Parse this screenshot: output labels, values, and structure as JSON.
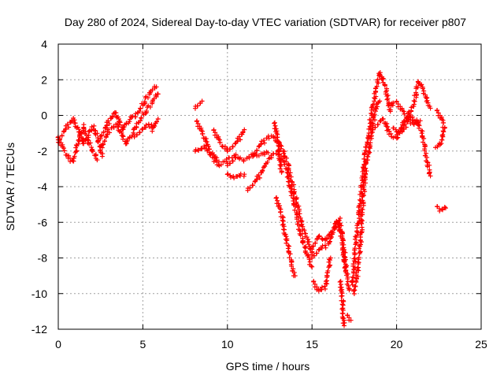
{
  "chart_data": {
    "type": "scatter",
    "title": "Day 280 of 2024, Sidereal Day-to-day VTEC variation (SDTVAR) for receiver p807",
    "xlabel": "GPS time / hours",
    "ylabel": "SDTVAR / TECUs",
    "xlim": [
      0,
      25
    ],
    "ylim": [
      -12,
      4
    ],
    "xticks": [
      0,
      5,
      10,
      15,
      20,
      25
    ],
    "yticks": [
      -12,
      -10,
      -8,
      -6,
      -4,
      -2,
      0,
      2,
      4
    ],
    "grid": true,
    "marker": "plus",
    "color": "#ff0000",
    "series": [
      {
        "name": "track",
        "points": [
          [
            0,
            -1.5
          ],
          [
            0.3,
            -1
          ],
          [
            0.6,
            -0.5
          ],
          [
            0.9,
            -0.2
          ],
          [
            1.2,
            -0.8
          ],
          [
            1.5,
            -1.6
          ],
          [
            1.8,
            -1
          ],
          [
            2.1,
            -0.6
          ],
          [
            2.4,
            -1.5
          ],
          [
            2.6,
            -2.3
          ]
        ]
      },
      {
        "name": "track",
        "points": [
          [
            0,
            -1.2
          ],
          [
            0.3,
            -1.9
          ],
          [
            0.6,
            -2.4
          ],
          [
            0.9,
            -2.6
          ],
          [
            1.2,
            -1.4
          ],
          [
            1.5,
            -0.6
          ],
          [
            1.8,
            -1.5
          ],
          [
            2.1,
            -2.1
          ],
          [
            2.3,
            -2.5
          ]
        ]
      },
      {
        "name": "track",
        "points": [
          [
            2.5,
            -1.3
          ],
          [
            3.0,
            -0.3
          ],
          [
            3.4,
            0.2
          ],
          [
            3.8,
            -0.8
          ],
          [
            4.2,
            -0.2
          ],
          [
            4.6,
            0
          ],
          [
            5.0,
            0.6
          ],
          [
            5.4,
            1.2
          ],
          [
            5.8,
            1.6
          ]
        ]
      },
      {
        "name": "track",
        "points": [
          [
            2.6,
            -1.8
          ],
          [
            3.0,
            -0.8
          ],
          [
            3.5,
            -0.5
          ],
          [
            4.0,
            -1.6
          ],
          [
            4.5,
            -0.8
          ],
          [
            5.0,
            0
          ],
          [
            5.5,
            0.6
          ],
          [
            5.9,
            1.2
          ]
        ]
      },
      {
        "name": "track",
        "points": [
          [
            4.5,
            -1.2
          ],
          [
            5.0,
            -0.8
          ],
          [
            5.4,
            -0.5
          ],
          [
            5.6,
            -0.8
          ],
          [
            5.9,
            -0.2
          ]
        ]
      },
      {
        "name": "track",
        "points": [
          [
            8.1,
            0.4
          ],
          [
            8.5,
            0.8
          ]
        ]
      },
      {
        "name": "track",
        "points": [
          [
            8.1,
            -2.0
          ],
          [
            8.6,
            -1.8
          ],
          [
            9.0,
            -2.2
          ],
          [
            9.5,
            -2.8
          ],
          [
            10.0,
            -2.5
          ],
          [
            10.5,
            -2.2
          ]
        ]
      },
      {
        "name": "track",
        "points": [
          [
            8.2,
            -0.3
          ],
          [
            8.6,
            -1.2
          ],
          [
            9.0,
            -2.0
          ],
          [
            9.5,
            -2.6
          ]
        ]
      },
      {
        "name": "track",
        "points": [
          [
            9.2,
            -0.8
          ],
          [
            9.6,
            -1.6
          ],
          [
            10.0,
            -2.0
          ]
        ]
      },
      {
        "name": "track",
        "points": [
          [
            10.0,
            -2.8
          ],
          [
            10.5,
            -2.4
          ],
          [
            11.0,
            -2.5
          ],
          [
            11.5,
            -2.2
          ],
          [
            12.0,
            -2.2
          ],
          [
            12.4,
            -2.1
          ]
        ]
      },
      {
        "name": "track",
        "points": [
          [
            10.0,
            -2.0
          ],
          [
            10.5,
            -1.6
          ],
          [
            11.0,
            -0.8
          ]
        ]
      },
      {
        "name": "track",
        "points": [
          [
            10.0,
            -3.3
          ],
          [
            10.5,
            -3.5
          ],
          [
            11.0,
            -3.3
          ]
        ]
      },
      {
        "name": "track",
        "points": [
          [
            11.2,
            -4.2
          ],
          [
            11.6,
            -3.8
          ],
          [
            12.0,
            -3.2
          ],
          [
            12.5,
            -2.4
          ],
          [
            13.0,
            -2.0
          ]
        ]
      },
      {
        "name": "track",
        "points": [
          [
            11.5,
            -2.3
          ],
          [
            12.0,
            -1.6
          ],
          [
            12.4,
            -1.2
          ],
          [
            12.8,
            -1.2
          ],
          [
            13.2,
            -1.8
          ],
          [
            13.6,
            -2.8
          ],
          [
            14.0,
            -4.5
          ],
          [
            14.4,
            -6
          ],
          [
            14.8,
            -7.2
          ],
          [
            15.0,
            -7.8
          ]
        ]
      },
      {
        "name": "track",
        "points": [
          [
            12.8,
            -0.4
          ],
          [
            13.0,
            -1.5
          ],
          [
            13.2,
            -3.2
          ]
        ]
      },
      {
        "name": "track",
        "points": [
          [
            12.9,
            -4.6
          ],
          [
            13.2,
            -5.6
          ],
          [
            13.5,
            -7
          ],
          [
            13.8,
            -8.4
          ],
          [
            14.0,
            -9
          ]
        ]
      },
      {
        "name": "track",
        "points": [
          [
            13.0,
            -2.0
          ],
          [
            13.5,
            -3.0
          ],
          [
            13.9,
            -4.8
          ],
          [
            14.3,
            -6.5
          ],
          [
            14.7,
            -7.8
          ],
          [
            15.0,
            -8.5
          ]
        ]
      },
      {
        "name": "track",
        "points": [
          [
            15.0,
            -7.5
          ],
          [
            15.4,
            -6.8
          ],
          [
            15.8,
            -7.0
          ],
          [
            16.2,
            -6.5
          ],
          [
            16.6,
            -5.8
          ],
          [
            16.8,
            -6.8
          ],
          [
            17.0,
            -8.5
          ],
          [
            17.2,
            -9.8
          ]
        ]
      },
      {
        "name": "track",
        "points": [
          [
            15.0,
            -8.0
          ],
          [
            15.5,
            -7.5
          ],
          [
            16.0,
            -7.2
          ],
          [
            16.5,
            -6.0
          ],
          [
            16.8,
            -7
          ],
          [
            17.0,
            -8.7
          ]
        ]
      },
      {
        "name": "track",
        "points": [
          [
            15.1,
            -9.3
          ],
          [
            15.4,
            -9.9
          ],
          [
            15.8,
            -9.6
          ],
          [
            16.1,
            -8
          ]
        ]
      },
      {
        "name": "track",
        "points": [
          [
            16.7,
            -9.3
          ],
          [
            16.8,
            -10.5
          ],
          [
            16.9,
            -11.8
          ]
        ]
      },
      {
        "name": "track",
        "points": [
          [
            17.1,
            -11.2
          ],
          [
            17.3,
            -11.5
          ]
        ]
      },
      {
        "name": "track",
        "points": [
          [
            17.5,
            -10
          ],
          [
            17.8,
            -8
          ],
          [
            18.0,
            -5
          ],
          [
            18.2,
            -3
          ],
          [
            18.5,
            -1
          ],
          [
            18.8,
            0.5
          ],
          [
            19.0,
            0.8
          ]
        ]
      },
      {
        "name": "track",
        "points": [
          [
            17.4,
            -9.5
          ],
          [
            17.6,
            -7
          ],
          [
            17.9,
            -4.5
          ],
          [
            18.2,
            -1.8
          ],
          [
            18.6,
            0.5
          ],
          [
            19.0,
            2.4
          ],
          [
            19.3,
            1.8
          ],
          [
            19.6,
            0.3
          ],
          [
            19.8,
            0.7
          ]
        ]
      },
      {
        "name": "track",
        "points": [
          [
            18.6,
            -0.8
          ],
          [
            19.2,
            -0.2
          ],
          [
            19.6,
            -1.0
          ],
          [
            20.0,
            -1.3
          ],
          [
            20.5,
            -0.2
          ],
          [
            21.0,
            0.5
          ],
          [
            21.3,
            1.9
          ],
          [
            21.7,
            1.2
          ],
          [
            22.0,
            0.4
          ]
        ]
      },
      {
        "name": "track",
        "points": [
          [
            19.8,
            -0.7
          ],
          [
            20.3,
            -1
          ],
          [
            20.8,
            0
          ],
          [
            21.2,
            -0.3
          ],
          [
            21.5,
            -1
          ],
          [
            21.7,
            -2
          ],
          [
            22.0,
            -3.4
          ]
        ]
      },
      {
        "name": "track",
        "points": [
          [
            20.0,
            0.8
          ],
          [
            20.5,
            0
          ],
          [
            21.0,
            -0.5
          ],
          [
            21.4,
            -0.3
          ]
        ]
      },
      {
        "name": "track",
        "points": [
          [
            22.4,
            0.3
          ],
          [
            22.8,
            -0.5
          ],
          [
            22.7,
            -1.5
          ],
          [
            22.3,
            -1.8
          ]
        ]
      },
      {
        "name": "track",
        "points": [
          [
            22.4,
            -5.1
          ],
          [
            22.6,
            -5.3
          ],
          [
            22.9,
            -5.2
          ]
        ]
      }
    ]
  }
}
